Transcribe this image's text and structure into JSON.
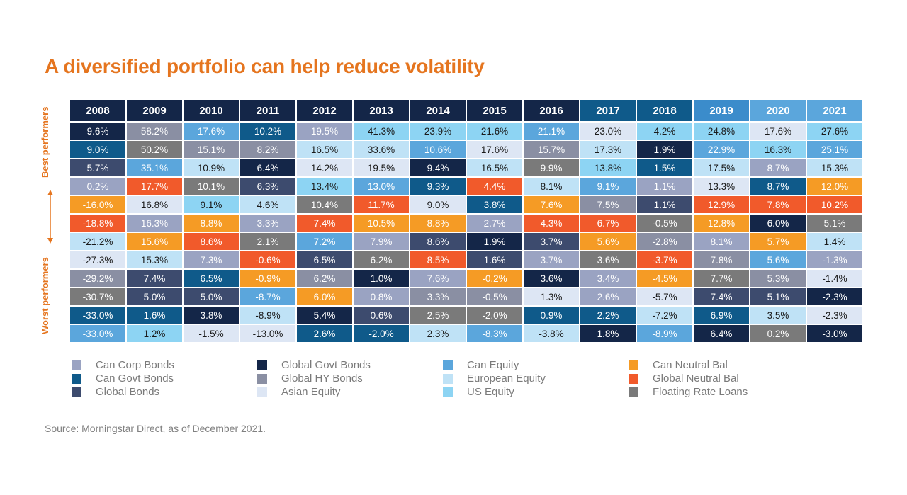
{
  "title": "A diversified portfolio can help reduce volatility",
  "side_labels": {
    "best": "Best performers",
    "worst": "Worst performers"
  },
  "source": "Source: Morningstar Direct, as of December 2021.",
  "legend": [
    {
      "name": "Can Corp Bonds",
      "color": "#9aa3c2"
    },
    {
      "name": "Can Govt Bonds",
      "color": "#0f5a8a"
    },
    {
      "name": "Global Bonds",
      "color": "#3d4b6e"
    },
    {
      "name": "Global Govt Bonds",
      "color": "#142648"
    },
    {
      "name": "Global HY Bonds",
      "color": "#8a8fa3"
    },
    {
      "name": "Asian Equity",
      "color": "#dde6f4"
    },
    {
      "name": "Can Equity",
      "color": "#5ba6dc"
    },
    {
      "name": "European Equity",
      "color": "#bfe2f6"
    },
    {
      "name": "US Equity",
      "color": "#8dd4f3"
    },
    {
      "name": "Can Neutral Bal",
      "color": "#f59b25"
    },
    {
      "name": "Global Neutral Bal",
      "color": "#f15a2b"
    },
    {
      "name": "Floating Rate Loans",
      "color": "#7a7a7a"
    }
  ],
  "chart_data": {
    "type": "table",
    "header_colors": [
      "#142648",
      "#142648",
      "#142648",
      "#142648",
      "#142648",
      "#142648",
      "#142648",
      "#142648",
      "#142648",
      "#0f5a8a",
      "#0f5a8a",
      "#3b8ccb",
      "#5ba6dc",
      "#5ba6dc"
    ],
    "columns": [
      {
        "year": "2008",
        "cells": [
          {
            "v": "9.6%",
            "c": "Global Govt Bonds"
          },
          {
            "v": "9.0%",
            "c": "Can Govt Bonds"
          },
          {
            "v": "5.7%",
            "c": "Global Bonds"
          },
          {
            "v": "0.2%",
            "c": "Can Corp Bonds"
          },
          {
            "v": "-16.0%",
            "c": "Can Neutral Bal"
          },
          {
            "v": "-18.8%",
            "c": "Global Neutral Bal"
          },
          {
            "v": "-21.2%",
            "c": "European Equity"
          },
          {
            "v": "-27.3%",
            "c": "Asian Equity"
          },
          {
            "v": "-29.2%",
            "c": "Global HY Bonds"
          },
          {
            "v": "-30.7%",
            "c": "Floating Rate Loans"
          },
          {
            "v": "-33.0%",
            "c": "Can Govt Bonds"
          },
          {
            "v": "-33.0%",
            "c": "Can Equity"
          }
        ]
      },
      {
        "year": "2009",
        "cells": [
          {
            "v": "58.2%",
            "c": "Global HY Bonds"
          },
          {
            "v": "50.2%",
            "c": "Floating Rate Loans"
          },
          {
            "v": "35.1%",
            "c": "Can Equity"
          },
          {
            "v": "17.7%",
            "c": "Global Neutral Bal"
          },
          {
            "v": "16.8%",
            "c": "Asian Equity"
          },
          {
            "v": "16.3%",
            "c": "Can Corp Bonds"
          },
          {
            "v": "15.6%",
            "c": "Can Neutral Bal"
          },
          {
            "v": "15.3%",
            "c": "European Equity"
          },
          {
            "v": "7.4%",
            "c": "Global Bonds"
          },
          {
            "v": "5.0%",
            "c": "Global Bonds"
          },
          {
            "v": "1.6%",
            "c": "Can Govt Bonds"
          },
          {
            "v": "1.2%",
            "c": "US Equity"
          }
        ]
      },
      {
        "year": "2010",
        "cells": [
          {
            "v": "17.6%",
            "c": "Can Equity"
          },
          {
            "v": "15.1%",
            "c": "Global HY Bonds"
          },
          {
            "v": "10.9%",
            "c": "European Equity"
          },
          {
            "v": "10.1%",
            "c": "Floating Rate Loans"
          },
          {
            "v": "9.1%",
            "c": "US Equity"
          },
          {
            "v": "8.8%",
            "c": "Can Neutral Bal"
          },
          {
            "v": "8.6%",
            "c": "Global Neutral Bal"
          },
          {
            "v": "7.3%",
            "c": "Can Corp Bonds"
          },
          {
            "v": "6.5%",
            "c": "Can Govt Bonds"
          },
          {
            "v": "5.0%",
            "c": "Global Bonds"
          },
          {
            "v": "3.8%",
            "c": "Global Govt Bonds"
          },
          {
            "v": "-1.5%",
            "c": "Asian Equity"
          }
        ]
      },
      {
        "year": "2011",
        "cells": [
          {
            "v": "10.2%",
            "c": "Can Govt Bonds"
          },
          {
            "v": "8.2%",
            "c": "Global HY Bonds"
          },
          {
            "v": "6.4%",
            "c": "Global Govt Bonds"
          },
          {
            "v": "6.3%",
            "c": "Global Bonds"
          },
          {
            "v": "4.6%",
            "c": "European Equity"
          },
          {
            "v": "3.3%",
            "c": "Can Corp Bonds"
          },
          {
            "v": "2.1%",
            "c": "Floating Rate Loans"
          },
          {
            "v": "-0.6%",
            "c": "Global Neutral Bal"
          },
          {
            "v": "-0.9%",
            "c": "Can Neutral Bal"
          },
          {
            "v": "-8.7%",
            "c": "Can Equity"
          },
          {
            "v": "-8.9%",
            "c": "European Equity"
          },
          {
            "v": "-13.0%",
            "c": "Asian Equity"
          }
        ]
      },
      {
        "year": "2012",
        "cells": [
          {
            "v": "19.5%",
            "c": "Can Corp Bonds"
          },
          {
            "v": "16.5%",
            "c": "European Equity"
          },
          {
            "v": "14.2%",
            "c": "Asian Equity"
          },
          {
            "v": "13.4%",
            "c": "US Equity"
          },
          {
            "v": "10.4%",
            "c": "Floating Rate Loans"
          },
          {
            "v": "7.4%",
            "c": "Global Neutral Bal"
          },
          {
            "v": "7.2%",
            "c": "Can Equity"
          },
          {
            "v": "6.5%",
            "c": "Global Bonds"
          },
          {
            "v": "6.2%",
            "c": "Global HY Bonds"
          },
          {
            "v": "6.0%",
            "c": "Can Neutral Bal"
          },
          {
            "v": "5.4%",
            "c": "Global Govt Bonds"
          },
          {
            "v": "2.6%",
            "c": "Can Govt Bonds"
          }
        ]
      },
      {
        "year": "2013",
        "cells": [
          {
            "v": "41.3%",
            "c": "US Equity"
          },
          {
            "v": "33.6%",
            "c": "European Equity"
          },
          {
            "v": "19.5%",
            "c": "Asian Equity"
          },
          {
            "v": "13.0%",
            "c": "Can Equity"
          },
          {
            "v": "11.7%",
            "c": "Global Neutral Bal"
          },
          {
            "v": "10.5%",
            "c": "Can Neutral Bal"
          },
          {
            "v": "7.9%",
            "c": "Can Corp Bonds"
          },
          {
            "v": "6.2%",
            "c": "Floating Rate Loans"
          },
          {
            "v": "1.0%",
            "c": "Global Govt Bonds"
          },
          {
            "v": "0.8%",
            "c": "Can Corp Bonds"
          },
          {
            "v": "0.6%",
            "c": "Global Bonds"
          },
          {
            "v": "-2.0%",
            "c": "Can Govt Bonds"
          }
        ]
      },
      {
        "year": "2014",
        "cells": [
          {
            "v": "23.9%",
            "c": "US Equity"
          },
          {
            "v": "10.6%",
            "c": "Can Equity"
          },
          {
            "v": "9.4%",
            "c": "Global Govt Bonds"
          },
          {
            "v": "9.3%",
            "c": "Can Govt Bonds"
          },
          {
            "v": "9.0%",
            "c": "Asian Equity"
          },
          {
            "v": "8.8%",
            "c": "Can Neutral Bal"
          },
          {
            "v": "8.6%",
            "c": "Global Bonds"
          },
          {
            "v": "8.5%",
            "c": "Global Neutral Bal"
          },
          {
            "v": "7.6%",
            "c": "Can Corp Bonds"
          },
          {
            "v": "3.3%",
            "c": "Global HY Bonds"
          },
          {
            "v": "2.5%",
            "c": "Floating Rate Loans"
          },
          {
            "v": "2.3%",
            "c": "European Equity"
          }
        ]
      },
      {
        "year": "2015",
        "cells": [
          {
            "v": "21.6%",
            "c": "US Equity"
          },
          {
            "v": "17.6%",
            "c": "Asian Equity"
          },
          {
            "v": "16.5%",
            "c": "European Equity"
          },
          {
            "v": "4.4%",
            "c": "Global Neutral Bal"
          },
          {
            "v": "3.8%",
            "c": "Can Govt Bonds"
          },
          {
            "v": "2.7%",
            "c": "Can Corp Bonds"
          },
          {
            "v": "1.9%",
            "c": "Global Govt Bonds"
          },
          {
            "v": "1.6%",
            "c": "Global Bonds"
          },
          {
            "v": "-0.2%",
            "c": "Can Neutral Bal"
          },
          {
            "v": "-0.5%",
            "c": "Global HY Bonds"
          },
          {
            "v": "-2.0%",
            "c": "Floating Rate Loans"
          },
          {
            "v": "-8.3%",
            "c": "Can Equity"
          }
        ]
      },
      {
        "year": "2016",
        "cells": [
          {
            "v": "21.1%",
            "c": "Can Equity"
          },
          {
            "v": "15.7%",
            "c": "Global HY Bonds"
          },
          {
            "v": "9.9%",
            "c": "Floating Rate Loans"
          },
          {
            "v": "8.1%",
            "c": "European Equity"
          },
          {
            "v": "7.6%",
            "c": "Can Neutral Bal"
          },
          {
            "v": "4.3%",
            "c": "Global Neutral Bal"
          },
          {
            "v": "3.7%",
            "c": "Global Bonds"
          },
          {
            "v": "3.7%",
            "c": "Can Corp Bonds"
          },
          {
            "v": "3.6%",
            "c": "Global Govt Bonds"
          },
          {
            "v": "1.3%",
            "c": "Asian Equity"
          },
          {
            "v": "0.9%",
            "c": "Can Govt Bonds"
          },
          {
            "v": "-3.8%",
            "c": "European Equity"
          }
        ]
      },
      {
        "year": "2017",
        "cells": [
          {
            "v": "23.0%",
            "c": "Asian Equity"
          },
          {
            "v": "17.3%",
            "c": "European Equity"
          },
          {
            "v": "13.8%",
            "c": "US Equity"
          },
          {
            "v": "9.1%",
            "c": "Can Equity"
          },
          {
            "v": "7.5%",
            "c": "Global HY Bonds"
          },
          {
            "v": "6.7%",
            "c": "Global Neutral Bal"
          },
          {
            "v": "5.6%",
            "c": "Can Neutral Bal"
          },
          {
            "v": "3.6%",
            "c": "Floating Rate Loans"
          },
          {
            "v": "3.4%",
            "c": "Can Corp Bonds"
          },
          {
            "v": "2.6%",
            "c": "Can Corp Bonds"
          },
          {
            "v": "2.2%",
            "c": "Can Govt Bonds"
          },
          {
            "v": "1.8%",
            "c": "Global Govt Bonds"
          }
        ]
      },
      {
        "year": "2018",
        "cells": [
          {
            "v": "4.2%",
            "c": "US Equity"
          },
          {
            "v": "1.9%",
            "c": "Global Govt Bonds"
          },
          {
            "v": "1.5%",
            "c": "Can Govt Bonds"
          },
          {
            "v": "1.1%",
            "c": "Can Corp Bonds"
          },
          {
            "v": "1.1%",
            "c": "Global Bonds"
          },
          {
            "v": "-0.5%",
            "c": "Floating Rate Loans"
          },
          {
            "v": "-2.8%",
            "c": "Global HY Bonds"
          },
          {
            "v": "-3.7%",
            "c": "Global Neutral Bal"
          },
          {
            "v": "-4.5%",
            "c": "Can Neutral Bal"
          },
          {
            "v": "-5.7%",
            "c": "Asian Equity"
          },
          {
            "v": "-7.2%",
            "c": "European Equity"
          },
          {
            "v": "-8.9%",
            "c": "Can Equity"
          }
        ]
      },
      {
        "year": "2019",
        "cells": [
          {
            "v": "24.8%",
            "c": "US Equity"
          },
          {
            "v": "22.9%",
            "c": "Can Equity"
          },
          {
            "v": "17.5%",
            "c": "European Equity"
          },
          {
            "v": "13.3%",
            "c": "Asian Equity"
          },
          {
            "v": "12.9%",
            "c": "Global Neutral Bal"
          },
          {
            "v": "12.8%",
            "c": "Can Neutral Bal"
          },
          {
            "v": "8.1%",
            "c": "Can Corp Bonds"
          },
          {
            "v": "7.8%",
            "c": "Global HY Bonds"
          },
          {
            "v": "7.7%",
            "c": "Floating Rate Loans"
          },
          {
            "v": "7.4%",
            "c": "Global Bonds"
          },
          {
            "v": "6.9%",
            "c": "Can Govt Bonds"
          },
          {
            "v": "6.4%",
            "c": "Global Govt Bonds"
          }
        ]
      },
      {
        "year": "2020",
        "cells": [
          {
            "v": "17.6%",
            "c": "Asian Equity"
          },
          {
            "v": "16.3%",
            "c": "US Equity"
          },
          {
            "v": "8.7%",
            "c": "Can Corp Bonds"
          },
          {
            "v": "8.7%",
            "c": "Can Govt Bonds"
          },
          {
            "v": "7.8%",
            "c": "Global Neutral Bal"
          },
          {
            "v": "6.0%",
            "c": "Global Govt Bonds"
          },
          {
            "v": "5.7%",
            "c": "Can Neutral Bal"
          },
          {
            "v": "5.6%",
            "c": "Can Equity"
          },
          {
            "v": "5.3%",
            "c": "Global HY Bonds"
          },
          {
            "v": "5.1%",
            "c": "Global Bonds"
          },
          {
            "v": "3.5%",
            "c": "European Equity"
          },
          {
            "v": "0.2%",
            "c": "Floating Rate Loans"
          }
        ]
      },
      {
        "year": "2021",
        "cells": [
          {
            "v": "27.6%",
            "c": "US Equity"
          },
          {
            "v": "25.1%",
            "c": "Can Equity"
          },
          {
            "v": "15.3%",
            "c": "European Equity"
          },
          {
            "v": "12.0%",
            "c": "Can Neutral Bal"
          },
          {
            "v": "10.2%",
            "c": "Global Neutral Bal"
          },
          {
            "v": "5.1%",
            "c": "Floating Rate Loans"
          },
          {
            "v": "1.4%",
            "c": "European Equity"
          },
          {
            "v": "-1.3%",
            "c": "Can Corp Bonds"
          },
          {
            "v": "-1.4%",
            "c": "Asian Equity"
          },
          {
            "v": "-2.3%",
            "c": "Global Govt Bonds"
          },
          {
            "v": "-2.3%",
            "c": "Asian Equity"
          },
          {
            "v": "-3.0%",
            "c": "Global Govt Bonds"
          }
        ]
      }
    ]
  }
}
